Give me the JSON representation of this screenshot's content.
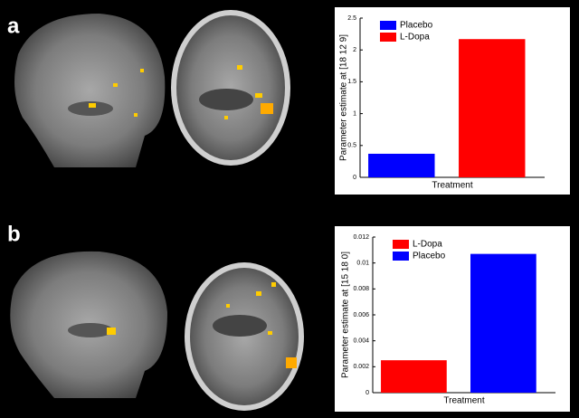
{
  "chart_data": [
    {
      "type": "bar",
      "panel_label": "a",
      "xlabel": "Treatment",
      "ylabel": "Parameter estimate at [18 12 9]",
      "categories": [
        null
      ],
      "series": [
        {
          "name": "Placebo",
          "color": "#0000ff",
          "values": [
            0.37
          ]
        },
        {
          "name": "L-Dopa",
          "color": "#ff0000",
          "values": [
            2.17
          ]
        }
      ],
      "ylim": [
        0,
        2.5
      ],
      "yticks": [
        0,
        0.5,
        1,
        1.5,
        2,
        2.5
      ],
      "legend": "upper left"
    },
    {
      "type": "bar",
      "panel_label": "b",
      "xlabel": "Treatment",
      "ylabel": "Parameter estimate at [15 18 0]",
      "categories": [
        null
      ],
      "series": [
        {
          "name": "L-Dopa",
          "color": "#ff0000",
          "values": [
            0.0025
          ]
        },
        {
          "name": "Placebo",
          "color": "#0000ff",
          "values": [
            0.0107
          ]
        }
      ],
      "ylim": [
        0,
        0.012
      ],
      "yticks": [
        0,
        0.002,
        0.004,
        0.006,
        0.008,
        0.01,
        0.012
      ],
      "legend": "upper left"
    }
  ]
}
